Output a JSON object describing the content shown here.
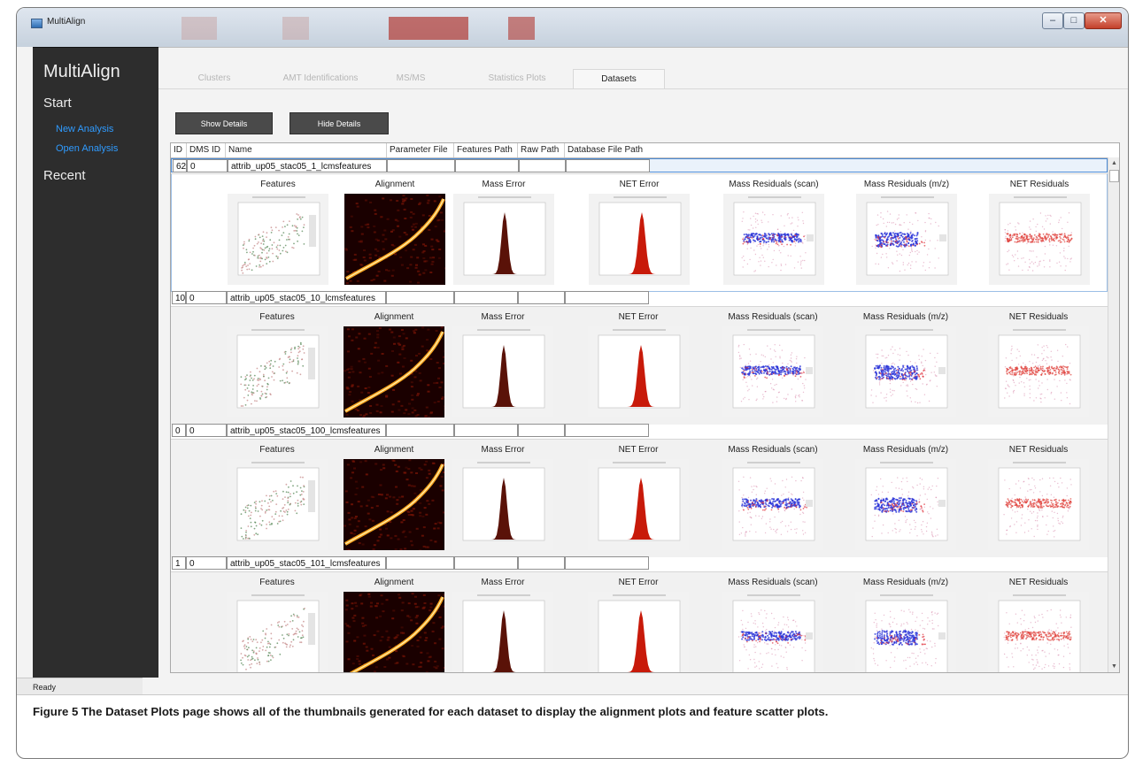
{
  "window": {
    "title": "MultiAlign",
    "controls": [
      "–",
      "□",
      "✕"
    ]
  },
  "sidebar": {
    "brand": "MultiAlign",
    "start_heading": "Start",
    "links": [
      {
        "label": "New Analysis"
      },
      {
        "label": "Open Analysis"
      }
    ],
    "recent_heading": "Recent"
  },
  "tabs": [
    {
      "label": "Clusters"
    },
    {
      "label": "AMT Identifications"
    },
    {
      "label": "MS/MS"
    },
    {
      "label": "Statistics Plots"
    },
    {
      "label": "Datasets"
    }
  ],
  "buttons": {
    "show_details": "Show Details",
    "hide_details": "Hide Details"
  },
  "grid": {
    "headers": [
      "ID",
      "DMS ID",
      "Name",
      "Parameter File",
      "Features Path",
      "Raw Path",
      "Database File Path"
    ],
    "plot_titles": [
      "Features",
      "Alignment",
      "Mass Error",
      "NET Error",
      "Mass Residuals (scan)",
      "Mass Residuals (m/z)",
      "NET Residuals"
    ],
    "datasets": [
      {
        "id": "62",
        "dms_id": "0",
        "name": "attrib_up05_stac05_1_lcmsfeatures"
      },
      {
        "id": "10",
        "dms_id": "0",
        "name": "attrib_up05_stac05_10_lcmsfeatures"
      },
      {
        "id": "0",
        "dms_id": "0",
        "name": "attrib_up05_stac05_100_lcmsfeatures"
      },
      {
        "id": "1",
        "dms_id": "0",
        "name": "attrib_up05_stac05_101_lcmsfeatures"
      }
    ],
    "scroll_up": "▲",
    "scroll_down": "▼"
  },
  "status": "Ready",
  "caption": {
    "figure": "Figure 5",
    "text": " The Dataset Plots page shows all of the thumbnails generated for each dataset to display the alignment plots and feature scatter plots."
  },
  "colors": {
    "sidebar_bg": "#2d2d2d",
    "link": "#2f9bff",
    "button_bg": "#4a4a4a",
    "selection": "#4b8bd6",
    "caption_figure": "#1e3a78"
  }
}
